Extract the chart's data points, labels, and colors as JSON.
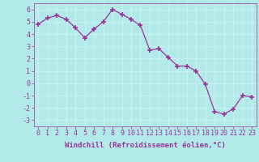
{
  "x": [
    0,
    1,
    2,
    3,
    4,
    5,
    6,
    7,
    8,
    9,
    10,
    11,
    12,
    13,
    14,
    15,
    16,
    17,
    18,
    19,
    20,
    21,
    22,
    23
  ],
  "y": [
    4.8,
    5.3,
    5.5,
    5.2,
    4.5,
    3.7,
    4.4,
    5.0,
    6.0,
    5.6,
    5.2,
    4.7,
    2.7,
    2.8,
    2.1,
    1.4,
    1.4,
    1.0,
    -0.1,
    -2.3,
    -2.5,
    -2.1,
    -1.0,
    -1.1
  ],
  "line_color": "#993399",
  "marker": "+",
  "marker_size": 4,
  "marker_linewidth": 1.2,
  "xlabel": "Windchill (Refroidissement éolien,°C)",
  "xlabel_color": "#993399",
  "ylim": [
    -3.5,
    6.5
  ],
  "xlim": [
    -0.5,
    23.5
  ],
  "yticks": [
    -3,
    -2,
    -1,
    0,
    1,
    2,
    3,
    4,
    5,
    6
  ],
  "xticks": [
    0,
    1,
    2,
    3,
    4,
    5,
    6,
    7,
    8,
    9,
    10,
    11,
    12,
    13,
    14,
    15,
    16,
    17,
    18,
    19,
    20,
    21,
    22,
    23
  ],
  "background_color": "#b2eaea",
  "grid_color": "#c8f0f0",
  "tick_color": "#993399",
  "axis_label_fontsize": 6.5,
  "tick_fontsize": 6.0
}
